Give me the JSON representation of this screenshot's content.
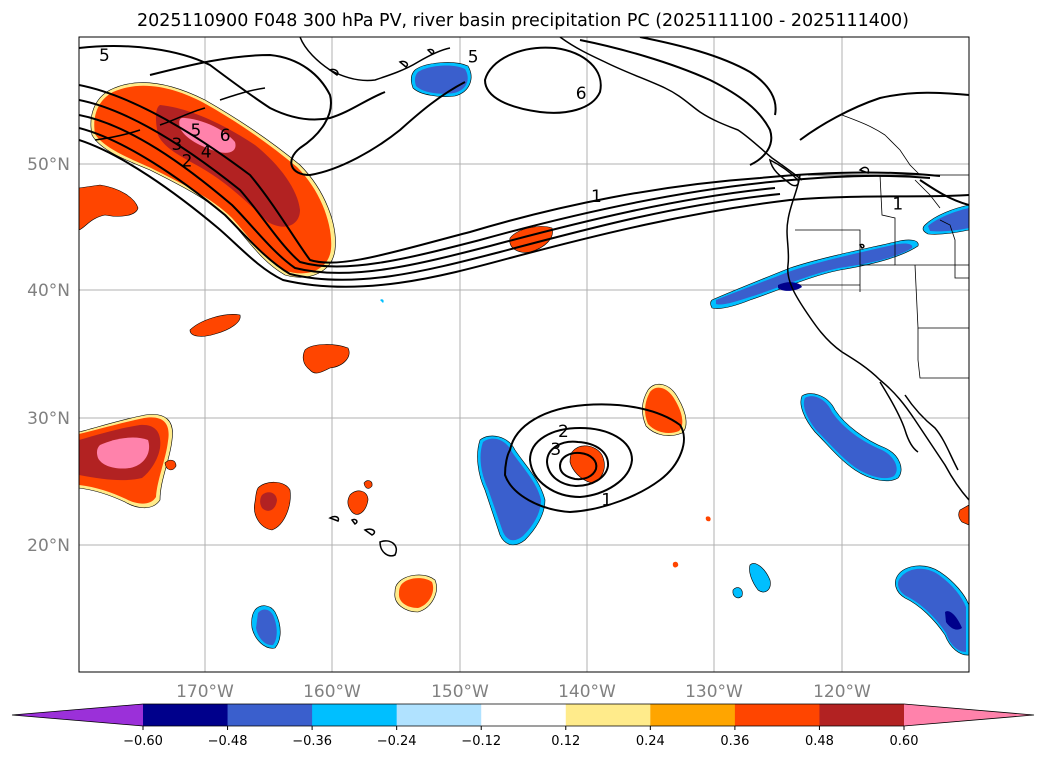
{
  "title": "2025110900 F048 300 hPa PV, river basin precipitation PC (2025111100 - 2025111400)",
  "map": {
    "lat_ticks": [
      {
        "value": 50,
        "label": "50°N"
      },
      {
        "value": 40,
        "label": "40°N"
      },
      {
        "value": 30,
        "label": "30°N"
      },
      {
        "value": 20,
        "label": "20°N"
      }
    ],
    "lon_ticks": [
      {
        "value": -170,
        "label": "170°W"
      },
      {
        "value": -160,
        "label": "160°W"
      },
      {
        "value": -150,
        "label": "150°W"
      },
      {
        "value": -140,
        "label": "140°W"
      },
      {
        "value": -130,
        "label": "130°W"
      },
      {
        "value": -120,
        "label": "120°W"
      }
    ],
    "extent": {
      "lon_min": -180,
      "lon_max": -110,
      "lat_min": 10,
      "lat_max": 60
    },
    "gridlines": true
  },
  "pv_contour_labels": [
    {
      "text": "5",
      "lon": -178,
      "lat": 58.5
    },
    {
      "text": "5",
      "lon": -149,
      "lat": 58.4
    },
    {
      "text": "6",
      "lon": -140.5,
      "lat": 55.5
    },
    {
      "text": "5",
      "lon": -170.8,
      "lat": 52.6
    },
    {
      "text": "6",
      "lon": -168.5,
      "lat": 52.2
    },
    {
      "text": "3",
      "lon": -172.3,
      "lat": 51.5
    },
    {
      "text": "4",
      "lon": -170,
      "lat": 50.9
    },
    {
      "text": "2",
      "lon": -171.5,
      "lat": 50.2
    },
    {
      "text": "1",
      "lon": -139.3,
      "lat": 47.4
    },
    {
      "text": "1",
      "lon": -115.6,
      "lat": 46.8
    },
    {
      "text": "2",
      "lon": -141.9,
      "lat": 28.9
    },
    {
      "text": "3",
      "lon": -142.5,
      "lat": 27.5
    },
    {
      "text": "1",
      "lon": -138.5,
      "lat": 23.5
    }
  ],
  "colorbar": {
    "colors": [
      "#9b30d9",
      "#00008b",
      "#3a5fcd",
      "#00bfff",
      "#b0e2ff",
      "#ffffff",
      "#ffeb8b",
      "#ffa500",
      "#ff4500",
      "#b22222",
      "#ff82ab"
    ],
    "tick_labels": [
      "−0.60",
      "−0.48",
      "−0.36",
      "−0.24",
      "−0.12",
      "0.12",
      "0.24",
      "0.36",
      "0.48",
      "0.60"
    ]
  }
}
